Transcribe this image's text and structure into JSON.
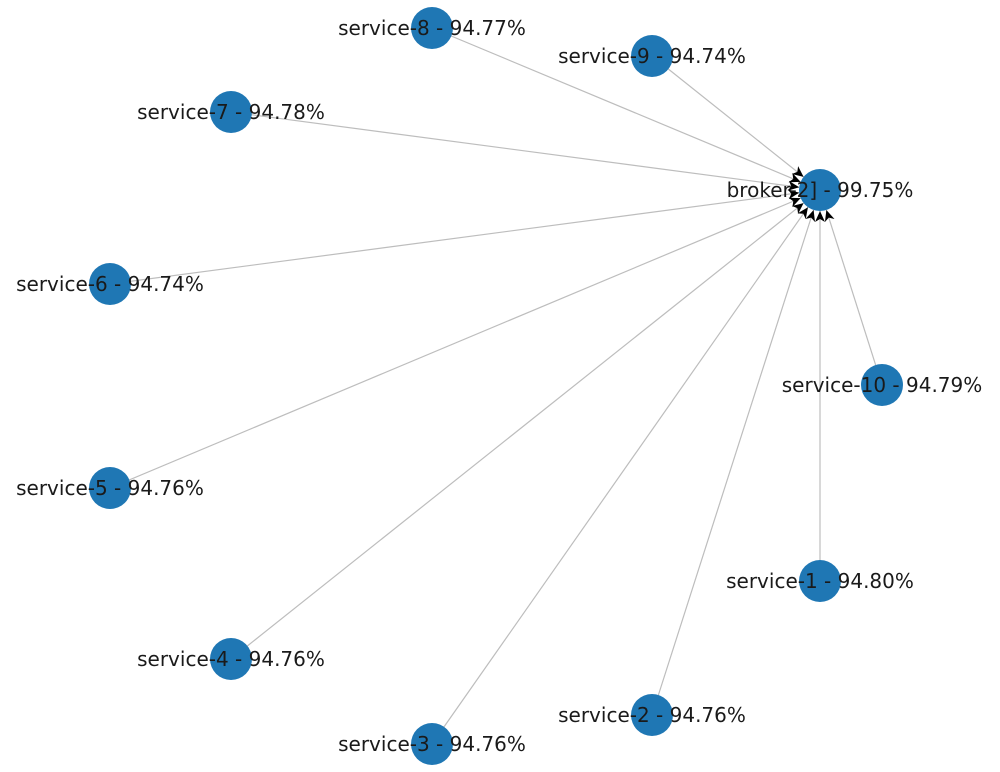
{
  "colors": {
    "node": "#1f77b4",
    "edge": "#bdbdbd",
    "arrow": "#000000",
    "text": "#1a1a1a"
  },
  "graph": {
    "hub": {
      "id": "broker",
      "label": "broker-2] - 99.75%"
    },
    "nodes": [
      {
        "id": "service-8",
        "label": "service-8 - 94.77%"
      },
      {
        "id": "service-9",
        "label": "service-9 - 94.74%"
      },
      {
        "id": "service-7",
        "label": "service-7 - 94.78%"
      },
      {
        "id": "service-6",
        "label": "service-6 - 94.74%"
      },
      {
        "id": "service-10",
        "label": "service-10 - 94.79%"
      },
      {
        "id": "service-5",
        "label": "service-5 - 94.76%"
      },
      {
        "id": "service-1",
        "label": "service-1 - 94.80%"
      },
      {
        "id": "service-4",
        "label": "service-4 - 94.76%"
      },
      {
        "id": "service-2",
        "label": "service-2 - 94.76%"
      },
      {
        "id": "service-3",
        "label": "service-3 - 94.76%"
      }
    ],
    "edges": [
      {
        "from": "service-8",
        "to": "broker"
      },
      {
        "from": "service-9",
        "to": "broker"
      },
      {
        "from": "service-7",
        "to": "broker"
      },
      {
        "from": "service-6",
        "to": "broker"
      },
      {
        "from": "service-10",
        "to": "broker"
      },
      {
        "from": "service-5",
        "to": "broker"
      },
      {
        "from": "service-1",
        "to": "broker"
      },
      {
        "from": "service-4",
        "to": "broker"
      },
      {
        "from": "service-2",
        "to": "broker"
      },
      {
        "from": "service-3",
        "to": "broker"
      }
    ]
  }
}
